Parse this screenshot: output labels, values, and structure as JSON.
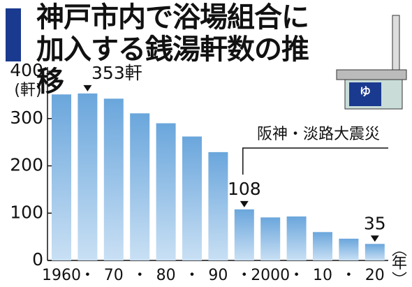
{
  "chart_data": {
    "type": "bar",
    "title": "神戸市内で浴場組合に加入する銭湯軒数の推移",
    "y_unit": "(軒)",
    "x_unit": "年",
    "categories": [
      "1960",
      "・",
      "70",
      "・",
      "80",
      "・",
      "90",
      "・",
      "2000",
      "・",
      "10",
      "・",
      "20"
    ],
    "values": [
      351,
      353,
      342,
      311,
      290,
      262,
      229,
      108,
      91,
      93,
      60,
      46,
      35
    ],
    "value_labels": [
      null,
      "353軒",
      null,
      null,
      null,
      null,
      null,
      "108",
      null,
      null,
      null,
      null,
      "35"
    ],
    "annotation": "阪神・淡路大震災",
    "color": "#7fb2e0",
    "ylim": [
      0,
      400
    ],
    "yticks": [
      0,
      100,
      200,
      300,
      400
    ]
  }
}
